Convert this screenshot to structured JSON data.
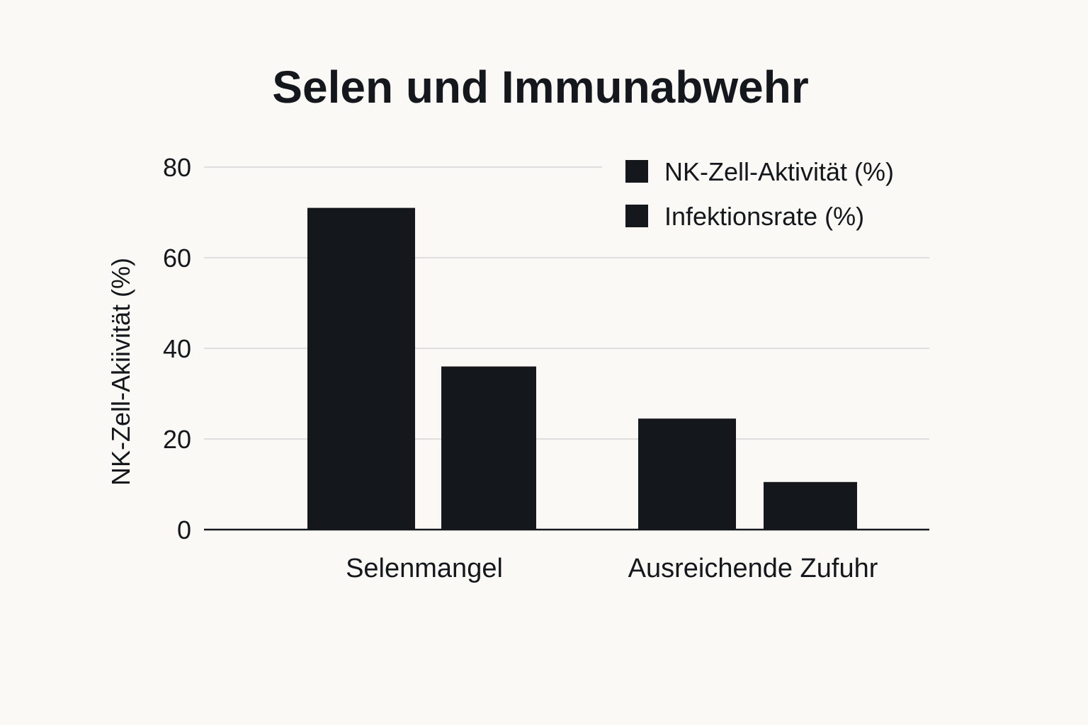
{
  "chart_data": {
    "type": "bar",
    "title": "Selen und Immunabwehr",
    "ylabel": "NK-Zell-Akiivität (%)",
    "xlabel": "",
    "categories": [
      "Selenmangel",
      "Ausreichende Zufuhr"
    ],
    "series": [
      {
        "name": "NK-Zell-Aktivität (%)",
        "values": [
          71,
          24.5
        ],
        "color": "#14171c"
      },
      {
        "name": "Infektionsrate (%)",
        "values": [
          36,
          10.5
        ],
        "color": "#14171c"
      }
    ],
    "ylim": [
      0,
      80
    ],
    "yticks": [
      "0",
      "20",
      "40",
      "60",
      "80"
    ],
    "grid": true,
    "legend_position": "top-right"
  }
}
